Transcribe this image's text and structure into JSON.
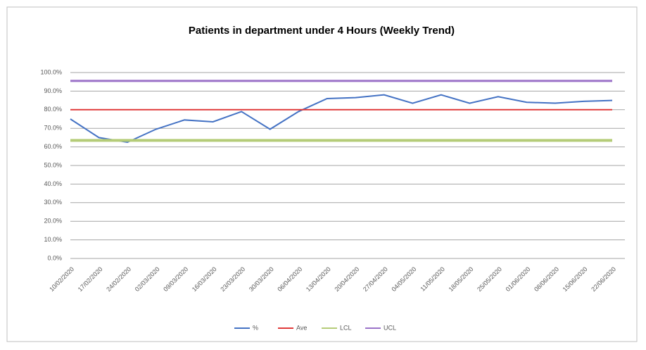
{
  "chart_data": {
    "type": "line",
    "title": "Patients in department under 4 Hours (Weekly Trend)",
    "categories": [
      "10/02/2020",
      "17/02/2020",
      "24/02/2020",
      "02/03/2020",
      "09/03/2020",
      "16/03/2020",
      "23/03/2020",
      "30/03/2020",
      "06/04/2020",
      "13/04/2020",
      "20/04/2020",
      "27/04/2020",
      "04/05/2020",
      "11/05/2020",
      "18/05/2020",
      "25/05/2020",
      "01/06/2020",
      "08/06/2020",
      "15/06/2020",
      "22/06/2020"
    ],
    "series": [
      {
        "name": "%",
        "color": "#4472c4",
        "values": [
          75,
          65,
          62.5,
          69.5,
          74.5,
          73.5,
          79,
          69.5,
          79,
          86,
          86.5,
          88,
          83.5,
          88,
          83.5,
          87,
          84,
          83.5,
          84.5,
          85
        ]
      },
      {
        "name": "Ave",
        "color": "#e03a3a",
        "values": [
          80,
          80,
          80,
          80,
          80,
          80,
          80,
          80,
          80,
          80,
          80,
          80,
          80,
          80,
          80,
          80,
          80,
          80,
          80,
          80
        ]
      },
      {
        "name": "LCL",
        "color": "#b5cc78",
        "values": [
          63.5,
          63.5,
          63.5,
          63.5,
          63.5,
          63.5,
          63.5,
          63.5,
          63.5,
          63.5,
          63.5,
          63.5,
          63.5,
          63.5,
          63.5,
          63.5,
          63.5,
          63.5,
          63.5,
          63.5
        ]
      },
      {
        "name": "UCL",
        "color": "#9b72c8",
        "values": [
          95.5,
          95.5,
          95.5,
          95.5,
          95.5,
          95.5,
          95.5,
          95.5,
          95.5,
          95.5,
          95.5,
          95.5,
          95.5,
          95.5,
          95.5,
          95.5,
          95.5,
          95.5,
          95.5,
          95.5
        ]
      }
    ],
    "ylim": [
      0,
      100
    ],
    "yticks": [
      {
        "value": 0,
        "label": "0.0%"
      },
      {
        "value": 10,
        "label": "10.0%"
      },
      {
        "value": 20,
        "label": "20.0%"
      },
      {
        "value": 30,
        "label": "30.0%"
      },
      {
        "value": 40,
        "label": "40.0%"
      },
      {
        "value": 50,
        "label": "50.0%"
      },
      {
        "value": 60,
        "label": "60.0%"
      },
      {
        "value": 70,
        "label": "70.0%"
      },
      {
        "value": 80,
        "label": "80.0%"
      },
      {
        "value": 90,
        "label": "90.0%"
      },
      {
        "value": 100,
        "label": "100.0%"
      }
    ],
    "grid": true,
    "legend": "bottom"
  }
}
